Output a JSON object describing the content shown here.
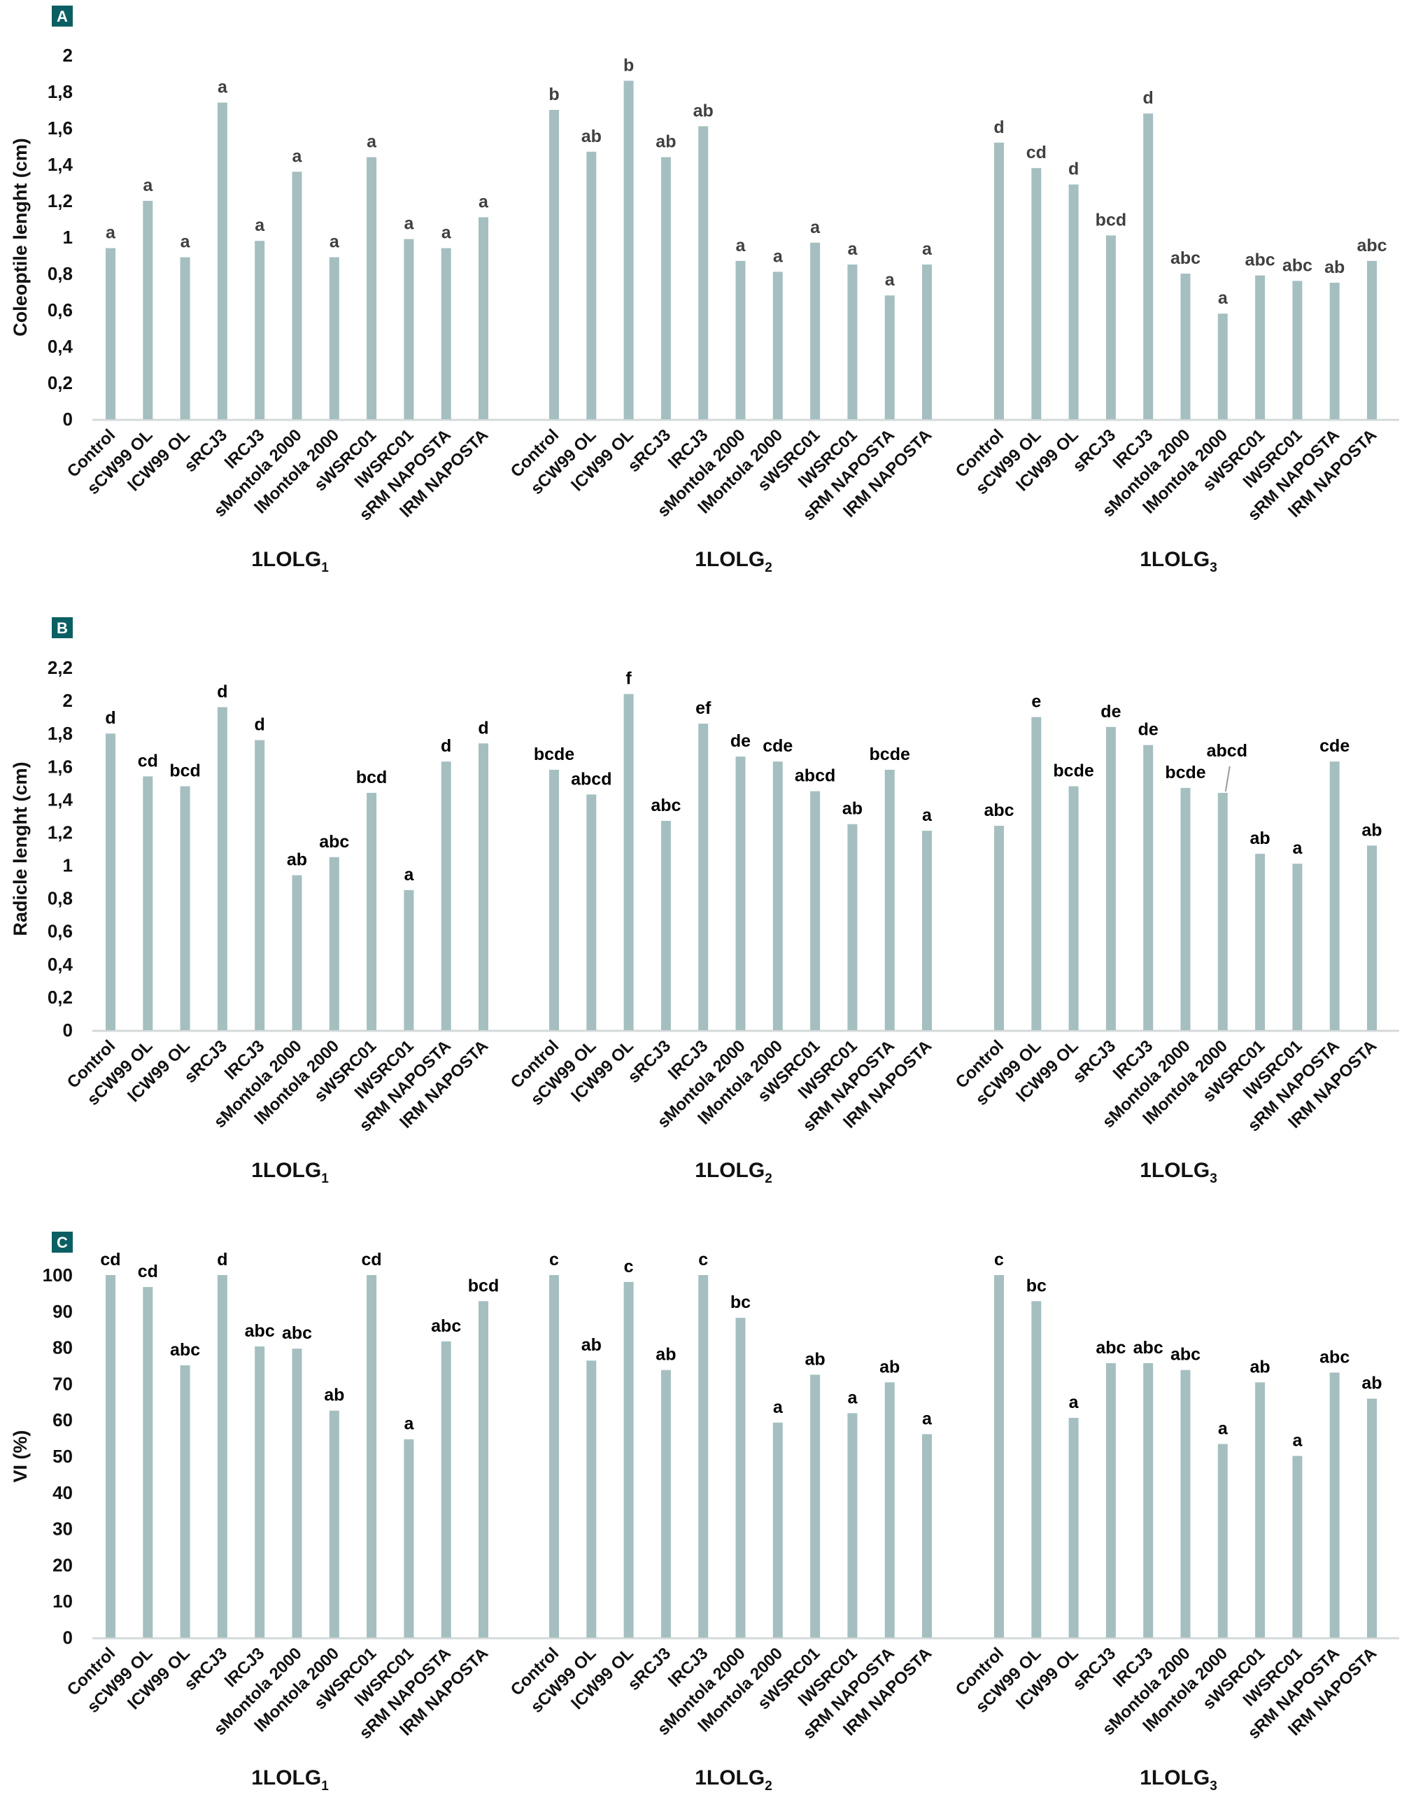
{
  "categories": [
    "Control",
    "sCW99 OL",
    "lCW99 OL",
    "sRCJ3",
    "lRCJ3",
    "sMontola 2000",
    "lMontola 2000",
    "sWSRC01",
    "lWSRC01",
    "sRM NAPOSTA",
    "lRM NAPOSTA"
  ],
  "groups": [
    {
      "label": "1LOLG",
      "subscript": "1"
    },
    {
      "label": "1LOLG",
      "subscript": "2"
    },
    {
      "label": "1LOLG",
      "subscript": "3"
    }
  ],
  "colors": {
    "bar": "#a5bfc0",
    "badge": "#0b5f63",
    "axis": "#d4d9d9"
  },
  "chart_data": [
    {
      "panel": "A",
      "type": "bar",
      "title": "",
      "xlabel": "",
      "ylabel": "Coleoptile lenght (cm)",
      "ylim": [
        0,
        2
      ],
      "yticks": [
        "0",
        "0,2",
        "0,4",
        "0,6",
        "0,8",
        "1",
        "1,2",
        "1,4",
        "1,6",
        "1,8",
        "2"
      ],
      "ytick_values": [
        0,
        0.2,
        0.4,
        0.6,
        0.8,
        1.0,
        1.2,
        1.4,
        1.6,
        1.8,
        2.0
      ],
      "letter_color": "#404040",
      "series": [
        {
          "name": "1LOLG1",
          "values": [
            0.94,
            1.2,
            0.89,
            1.74,
            0.98,
            1.36,
            0.89,
            1.44,
            0.99,
            0.94,
            1.11
          ],
          "letters": [
            "a",
            "a",
            "a",
            "a",
            "a",
            "a",
            "a",
            "a",
            "a",
            "a",
            "a"
          ]
        },
        {
          "name": "1LOLG2",
          "values": [
            1.7,
            1.47,
            1.86,
            1.44,
            1.61,
            0.87,
            0.81,
            0.97,
            0.85,
            0.68,
            0.85
          ],
          "letters": [
            "b",
            "ab",
            "b",
            "ab",
            "ab",
            "a",
            "a",
            "a",
            "a",
            "a",
            "a"
          ]
        },
        {
          "name": "1LOLG3",
          "values": [
            1.52,
            1.38,
            1.29,
            1.01,
            1.68,
            0.8,
            0.58,
            0.79,
            0.76,
            0.75,
            0.87
          ],
          "letters": [
            "d",
            "cd",
            "d",
            "bcd",
            "d",
            "abc",
            "a",
            "abc",
            "abc",
            "ab",
            "abc"
          ]
        }
      ]
    },
    {
      "panel": "B",
      "type": "bar",
      "title": "",
      "xlabel": "",
      "ylabel": "Radicle lenght (cm)",
      "ylim": [
        0,
        2.2
      ],
      "yticks": [
        "0",
        "0,2",
        "0,4",
        "0,6",
        "0,8",
        "1",
        "1,2",
        "1,4",
        "1,6",
        "1,8",
        "2",
        "2,2"
      ],
      "ytick_values": [
        0,
        0.2,
        0.4,
        0.6,
        0.8,
        1.0,
        1.2,
        1.4,
        1.6,
        1.8,
        2.0,
        2.2
      ],
      "letter_color": "#000000",
      "series": [
        {
          "name": "1LOLG1",
          "values": [
            1.8,
            1.54,
            1.48,
            1.96,
            1.76,
            0.94,
            1.05,
            1.44,
            0.85,
            1.63,
            1.74
          ],
          "letters": [
            "d",
            "cd",
            "bcd",
            "d",
            "d",
            "ab",
            "abc",
            "bcd",
            "a",
            "d",
            "d"
          ]
        },
        {
          "name": "1LOLG2",
          "values": [
            1.58,
            1.43,
            2.04,
            1.27,
            1.86,
            1.66,
            1.63,
            1.45,
            1.25,
            1.58,
            1.21
          ],
          "letters": [
            "bcde",
            "abcd",
            "f",
            "abc",
            "ef",
            "de",
            "cde",
            "abcd",
            "ab",
            "bcde",
            "a"
          ]
        },
        {
          "name": "1LOLG3",
          "values": [
            1.24,
            1.9,
            1.48,
            1.84,
            1.73,
            1.47,
            1.44,
            1.07,
            1.01,
            1.63,
            1.12
          ],
          "letters": [
            "abc",
            "e",
            "bcde",
            "de",
            "de",
            "bcde",
            "abcd",
            "ab",
            "a",
            "cde",
            "ab"
          ]
        }
      ]
    },
    {
      "panel": "C",
      "type": "bar",
      "title": "",
      "xlabel": "",
      "ylabel": "VI (%)",
      "ylim": [
        0,
        100
      ],
      "yticks": [
        "0",
        "10",
        "20",
        "30",
        "40",
        "50",
        "60",
        "70",
        "80",
        "90",
        "100"
      ],
      "ytick_values": [
        0,
        10,
        20,
        30,
        40,
        50,
        60,
        70,
        80,
        90,
        100
      ],
      "letter_color": "#000000",
      "series": [
        {
          "name": "1LOLG1",
          "values": [
            100,
            96.7,
            75.1,
            100,
            80.3,
            79.7,
            62.6,
            100,
            54.7,
            81.7,
            92.8
          ],
          "letters": [
            "cd",
            "cd",
            "abc",
            "d",
            "abc",
            "abc",
            "ab",
            "cd",
            "a",
            "abc",
            "bcd"
          ]
        },
        {
          "name": "1LOLG2",
          "values": [
            100,
            76.4,
            98.1,
            73.8,
            100,
            88.2,
            59.3,
            72.5,
            61.9,
            70.4,
            56.1
          ],
          "letters": [
            "c",
            "ab",
            "c",
            "ab",
            "c",
            "bc",
            "a",
            "ab",
            "a",
            "ab",
            "a"
          ]
        },
        {
          "name": "1LOLG3",
          "values": [
            100,
            92.8,
            60.6,
            75.7,
            75.7,
            73.8,
            53.4,
            70.4,
            50.1,
            73.1,
            65.9
          ],
          "letters": [
            "c",
            "bc",
            "a",
            "abc",
            "abc",
            "abc",
            "a",
            "ab",
            "a",
            "abc",
            "ab"
          ]
        }
      ]
    }
  ]
}
